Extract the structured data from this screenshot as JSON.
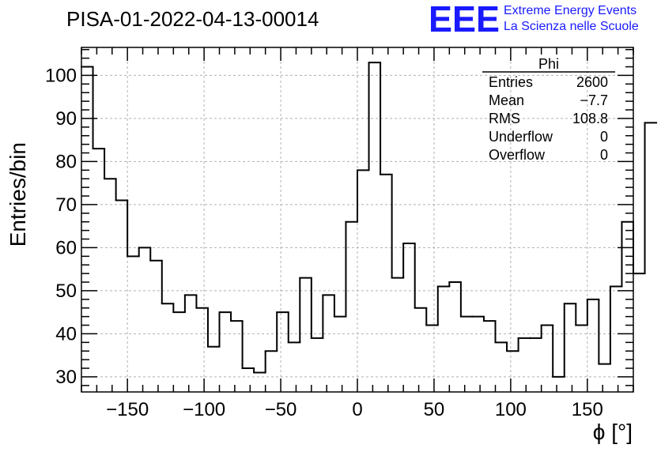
{
  "chart_data": {
    "type": "bar",
    "title": "PISA-01-2022-04-13-00014",
    "xlabel": "ϕ [°]",
    "ylabel": "Entries/bin",
    "xlim": [
      -180,
      180
    ],
    "ylim": [
      26.5,
      106.5
    ],
    "grid": true,
    "x_ticks": [
      -150,
      -100,
      -50,
      0,
      50,
      100,
      150
    ],
    "x_tick_labels": [
      "−150",
      "−100",
      "−50",
      "0",
      "50",
      "100",
      "150"
    ],
    "y_ticks": [
      30,
      40,
      50,
      60,
      70,
      80,
      90,
      100
    ],
    "y_tick_labels": [
      "30",
      "40",
      "50",
      "60",
      "70",
      "80",
      "90",
      "100"
    ],
    "bin_edges_start": -180,
    "bin_width": 7.5,
    "values": [
      102,
      83,
      76,
      71,
      58,
      60,
      57,
      47,
      45,
      49,
      46,
      37,
      45,
      43,
      32,
      31,
      36,
      45,
      38,
      53,
      39,
      49,
      44,
      66,
      78,
      103,
      77,
      53,
      61,
      46,
      42,
      51,
      52,
      44,
      44,
      43,
      38,
      36,
      39,
      39,
      42,
      30,
      47,
      42,
      48,
      33,
      51,
      66,
      54,
      89
    ],
    "stats_box": {
      "name": "Phi",
      "rows": [
        {
          "label": "Entries",
          "value": "2600"
        },
        {
          "label": "Mean",
          "value": "−7.7"
        },
        {
          "label": "RMS",
          "value": "108.8"
        },
        {
          "label": "Underflow",
          "value": "0"
        },
        {
          "label": "Overflow",
          "value": "0"
        }
      ]
    }
  },
  "logo": {
    "mark": "EEE",
    "line1": "Extreme Energy Events",
    "line2": "La Scienza nelle Scuole",
    "color": "#1a1aff"
  }
}
